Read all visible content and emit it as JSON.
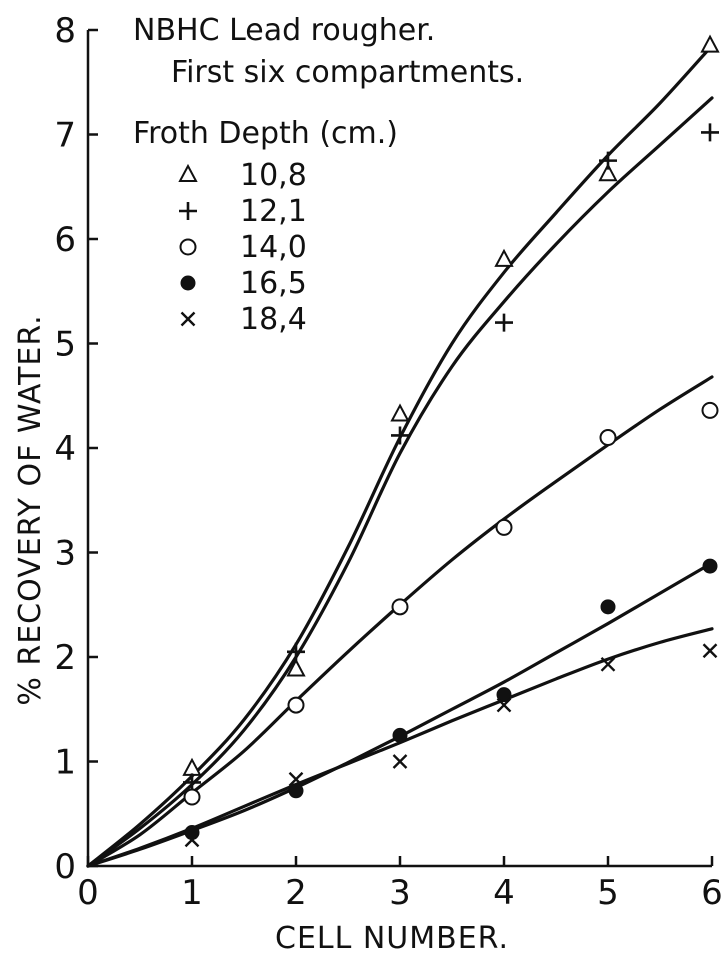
{
  "chart_data": {
    "type": "scatter",
    "title": "NBHC Lead rougher.",
    "subtitle": "First six compartments.",
    "xlabel": "CELL NUMBER.",
    "ylabel": "% RECOVERY OF WATER.",
    "xlim": [
      0,
      6
    ],
    "ylim": [
      0,
      8
    ],
    "x_ticks": [
      "0",
      "1",
      "2",
      "3",
      "4",
      "5",
      "6"
    ],
    "y_ticks": [
      "0",
      "1",
      "2",
      "3",
      "4",
      "5",
      "6",
      "7",
      "8"
    ],
    "grid": false,
    "legend_title": "Froth Depth (cm.)",
    "legend_position": "top-left",
    "series": [
      {
        "name": "10,8",
        "marker": "triangle",
        "points": [
          [
            1,
            0.93
          ],
          [
            2,
            1.88
          ],
          [
            3,
            4.32
          ],
          [
            4,
            5.8
          ],
          [
            5,
            6.62
          ],
          [
            6,
            7.85
          ]
        ],
        "curve": [
          [
            0,
            0
          ],
          [
            0.5,
            0.4
          ],
          [
            1,
            0.86
          ],
          [
            1.5,
            1.4
          ],
          [
            2,
            2.12
          ],
          [
            2.5,
            3.05
          ],
          [
            3,
            4.1
          ],
          [
            3.5,
            5.0
          ],
          [
            4,
            5.68
          ],
          [
            4.5,
            6.25
          ],
          [
            5,
            6.8
          ],
          [
            5.5,
            7.3
          ],
          [
            6,
            7.85
          ]
        ]
      },
      {
        "name": "12,1",
        "marker": "plus",
        "points": [
          [
            1,
            0.8
          ],
          [
            2,
            2.05
          ],
          [
            3,
            4.12
          ],
          [
            4,
            5.2
          ],
          [
            5,
            6.75
          ],
          [
            6,
            7.02
          ]
        ],
        "curve": [
          [
            0,
            0
          ],
          [
            0.5,
            0.36
          ],
          [
            1,
            0.78
          ],
          [
            1.5,
            1.3
          ],
          [
            2,
            2.0
          ],
          [
            2.5,
            2.9
          ],
          [
            3,
            3.95
          ],
          [
            3.5,
            4.78
          ],
          [
            4,
            5.4
          ],
          [
            4.5,
            5.95
          ],
          [
            5,
            6.45
          ],
          [
            5.5,
            6.9
          ],
          [
            6,
            7.35
          ]
        ]
      },
      {
        "name": "14,0",
        "marker": "open-circle",
        "points": [
          [
            1,
            0.66
          ],
          [
            2,
            1.54
          ],
          [
            3,
            2.48
          ],
          [
            4,
            3.24
          ],
          [
            5,
            4.1
          ],
          [
            6,
            4.36
          ]
        ],
        "curve": [
          [
            0,
            0
          ],
          [
            0.5,
            0.3
          ],
          [
            1,
            0.7
          ],
          [
            1.5,
            1.1
          ],
          [
            2,
            1.58
          ],
          [
            2.5,
            2.05
          ],
          [
            3,
            2.5
          ],
          [
            3.5,
            2.93
          ],
          [
            4,
            3.32
          ],
          [
            4.5,
            3.68
          ],
          [
            5,
            4.03
          ],
          [
            5.5,
            4.37
          ],
          [
            6,
            4.68
          ]
        ]
      },
      {
        "name": "16,5",
        "marker": "filled-circle",
        "points": [
          [
            1,
            0.32
          ],
          [
            2,
            0.72
          ],
          [
            3,
            1.25
          ],
          [
            4,
            1.64
          ],
          [
            5,
            2.48
          ],
          [
            6,
            2.87
          ]
        ],
        "curve": [
          [
            0,
            0
          ],
          [
            0.5,
            0.16
          ],
          [
            1,
            0.34
          ],
          [
            1.5,
            0.53
          ],
          [
            2,
            0.75
          ],
          [
            2.5,
            0.99
          ],
          [
            3,
            1.24
          ],
          [
            3.5,
            1.5
          ],
          [
            4,
            1.76
          ],
          [
            4.5,
            2.04
          ],
          [
            5,
            2.32
          ],
          [
            5.5,
            2.61
          ],
          [
            6,
            2.9
          ]
        ]
      },
      {
        "name": "18,4",
        "marker": "cross",
        "points": [
          [
            1,
            0.25
          ],
          [
            2,
            0.83
          ],
          [
            3,
            1.0
          ],
          [
            4,
            1.54
          ],
          [
            5,
            1.93
          ],
          [
            6,
            2.06
          ]
        ],
        "curve": [
          [
            0,
            0
          ],
          [
            0.5,
            0.17
          ],
          [
            1,
            0.36
          ],
          [
            1.5,
            0.57
          ],
          [
            2,
            0.78
          ],
          [
            2.5,
            0.98
          ],
          [
            3,
            1.18
          ],
          [
            3.5,
            1.39
          ],
          [
            4,
            1.59
          ],
          [
            4.5,
            1.79
          ],
          [
            5,
            1.98
          ],
          [
            5.5,
            2.14
          ],
          [
            6,
            2.27
          ]
        ]
      }
    ]
  }
}
